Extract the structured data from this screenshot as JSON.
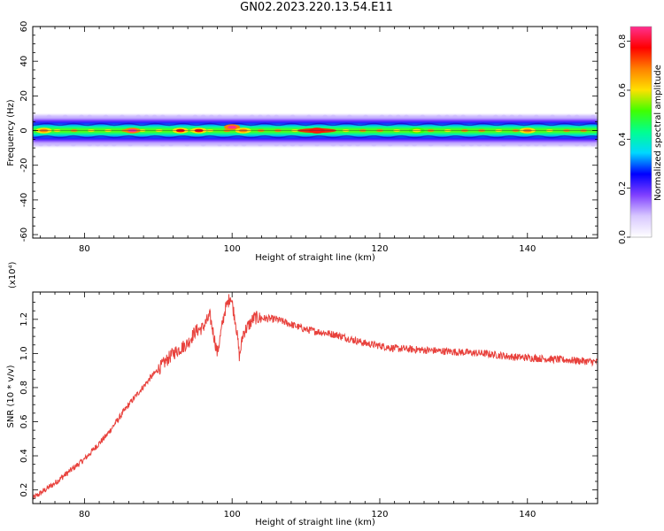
{
  "title": "GN02.2023.220.13.54.E11",
  "chart_data": [
    {
      "type": "heatmap",
      "xlabel": "Height of straight line (km)",
      "ylabel": "Frequency (Hz)",
      "xlim": [
        73,
        149.5
      ],
      "ylim": [
        -62,
        60
      ],
      "xticks": [
        80,
        100,
        120,
        140
      ],
      "yticks": [
        60,
        40,
        20,
        0,
        -20,
        -40,
        -60
      ],
      "colorbar": {
        "label": "Normalized spectral amplitude",
        "range": [
          0,
          0.86
        ],
        "ticks": [
          "0.0",
          "0.2",
          "0.4",
          "0.6",
          "0.8"
        ],
        "tick_values": [
          0,
          0.2,
          0.4,
          0.6,
          0.8
        ],
        "colors": [
          "#ffffff",
          "#d8c8ff",
          "#8040ff",
          "#0000ff",
          "#00d8ff",
          "#00ff90",
          "#40ff00",
          "#ffe000",
          "#ff8000",
          "#ff0000",
          "#ff3090"
        ]
      },
      "energy_band_hz": [
        -3,
        3
      ],
      "hotspots": [
        {
          "x": 74.5,
          "y": 0,
          "value": 0.7
        },
        {
          "x": 86.5,
          "y": 0,
          "value": 0.82
        },
        {
          "x": 93,
          "y": 0,
          "value": 0.75
        },
        {
          "x": 95.5,
          "y": 0,
          "value": 0.75
        },
        {
          "x": 100,
          "y": 2,
          "value": 0.85
        },
        {
          "x": 101.5,
          "y": 0,
          "value": 0.7
        },
        {
          "x": 111.5,
          "y": 0,
          "value": 0.86
        },
        {
          "x": 125,
          "y": 0,
          "value": 0.6
        },
        {
          "x": 140,
          "y": 0,
          "value": 0.7
        }
      ]
    },
    {
      "type": "line",
      "xlabel": "Height of straight line (km)",
      "ylabel": "SNR (10 * v/v)",
      "multiplier": "(x10⁴)",
      "xlim": [
        73,
        149.5
      ],
      "ylim": [
        0.12,
        1.36
      ],
      "xticks": [
        80,
        100,
        120,
        140
      ],
      "yticks": [
        "0.2",
        "0.4",
        "0.6",
        "0.8",
        "1.0",
        "1.2"
      ],
      "ytick_values": [
        0.2,
        0.4,
        0.6,
        0.8,
        1.0,
        1.2
      ],
      "color": "#e8413c",
      "x": [
        73,
        76,
        80,
        83,
        86,
        89,
        92,
        94,
        95,
        96,
        97,
        98,
        99,
        99.8,
        100.5,
        101,
        101.5,
        103,
        106,
        110,
        114,
        118,
        122,
        126,
        130,
        134,
        138,
        142,
        146,
        149.5
      ],
      "values": [
        0.15,
        0.24,
        0.38,
        0.52,
        0.7,
        0.86,
        1.0,
        1.06,
        1.13,
        1.15,
        1.22,
        1.0,
        1.25,
        1.34,
        1.18,
        0.98,
        1.12,
        1.21,
        1.2,
        1.14,
        1.11,
        1.06,
        1.03,
        1.02,
        1.01,
        1.0,
        0.98,
        0.97,
        0.96,
        0.95
      ]
    }
  ]
}
